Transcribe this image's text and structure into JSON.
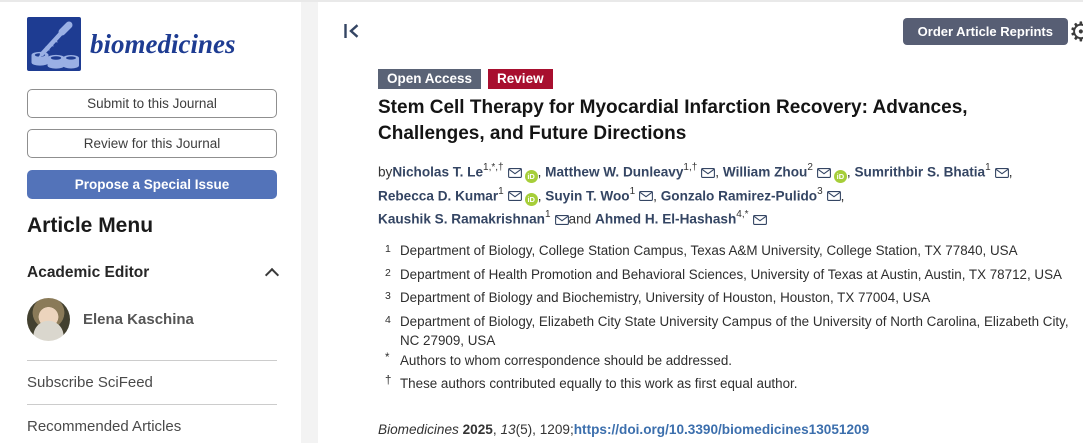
{
  "sidebar": {
    "logo_text": "biomedicines",
    "buttons": [
      {
        "label": "Submit to this Journal"
      },
      {
        "label": "Review for this Journal"
      },
      {
        "label": "Propose a Special Issue"
      }
    ],
    "article_menu_title": "Article Menu",
    "academic_editor": {
      "label": "Academic Editor",
      "name": "Elena Kaschina"
    },
    "links": [
      {
        "label": "Subscribe SciFeed"
      },
      {
        "label": "Recommended Articles"
      }
    ]
  },
  "main": {
    "order_reprints_label": "Order Article Reprints",
    "badges": [
      {
        "label": "Open Access",
        "color": "#5a6376"
      },
      {
        "label": "Review",
        "color": "#a80f2f"
      }
    ],
    "title": "Stem Cell Therapy for Myocardial Infarction Recovery: Advances, Challenges, and Future Directions",
    "byline_prefix": "by",
    "authors": [
      {
        "name": "Nicholas T. Le",
        "sup": "1,*,†",
        "email": true,
        "orcid": true,
        "sep": ", "
      },
      {
        "name": "Matthew W. Dunleavy",
        "sup": "1,†",
        "email": true,
        "orcid": false,
        "sep": ", "
      },
      {
        "name": "William Zhou",
        "sup": "2",
        "email": true,
        "orcid": true,
        "sep": ", "
      },
      {
        "name": "Sumrithbir S. Bhatia",
        "sup": "1",
        "email": true,
        "orcid": false,
        "sep": ", "
      },
      {
        "name": "Rebecca D. Kumar",
        "sup": "1",
        "email": true,
        "orcid": true,
        "sep": ", "
      },
      {
        "name": "Suyin T. Woo",
        "sup": "1",
        "email": true,
        "orcid": false,
        "sep": ", "
      },
      {
        "name": "Gonzalo Ramirez-Pulido",
        "sup": "3",
        "email": true,
        "orcid": false,
        "sep": ", "
      },
      {
        "name": "Kaushik S. Ramakrishnan",
        "sup": "1",
        "email": true,
        "orcid": false,
        "sep": "and "
      },
      {
        "name": "Ahmed H. El-Hashash",
        "sup": "4,*",
        "email": true,
        "orcid": false,
        "sep": ""
      }
    ],
    "affiliations": [
      {
        "num": "1",
        "text": "Department of Biology, College Station Campus, Texas A&M University, College Station, TX 77840, USA"
      },
      {
        "num": "2",
        "text": "Department of Health Promotion and Behavioral Sciences, University of Texas at Austin, Austin, TX 78712, USA"
      },
      {
        "num": "3",
        "text": "Department of Biology and Biochemistry, University of Houston, Houston, TX 77004, USA"
      },
      {
        "num": "4",
        "text": "Department of Biology, Elizabeth City State University Campus of the University of North Carolina, Elizabeth City, NC 27909, USA"
      }
    ],
    "footnotes": [
      {
        "symbol": "*",
        "text": "Authors to whom correspondence should be addressed."
      },
      {
        "symbol": "†",
        "text": "These authors contributed equally to this work as first equal author."
      }
    ],
    "citation_parts": [
      {
        "text": "Biomedicines ",
        "style": "italic"
      },
      {
        "text": "2025",
        "style": "bold"
      },
      {
        "text": ", ",
        "style": "normal"
      },
      {
        "text": "13",
        "style": "italic"
      },
      {
        "text": "(5), 1209;",
        "style": "normal"
      },
      {
        "text": "https://doi.org/10.3390/biomedicines13051209",
        "style": "link"
      }
    ]
  },
  "icons": {
    "email": "envelope-outline",
    "orcid_text": "iD",
    "academic_editor_chevron": "chevron-up",
    "collapse": "bar-left-chevron",
    "settings_gear": "⚙"
  },
  "colors": {
    "brand_blue": "#1e3c92",
    "logo_accent": "#9ab0e4",
    "propose_button": "#5373b9",
    "open_access_badge": "#5a6376",
    "review_badge": "#a80f2f",
    "order_button": "#575e74",
    "author_navy": "#344563",
    "orcid_green": "#a6ce39",
    "doi_link": "#3c6fad"
  }
}
